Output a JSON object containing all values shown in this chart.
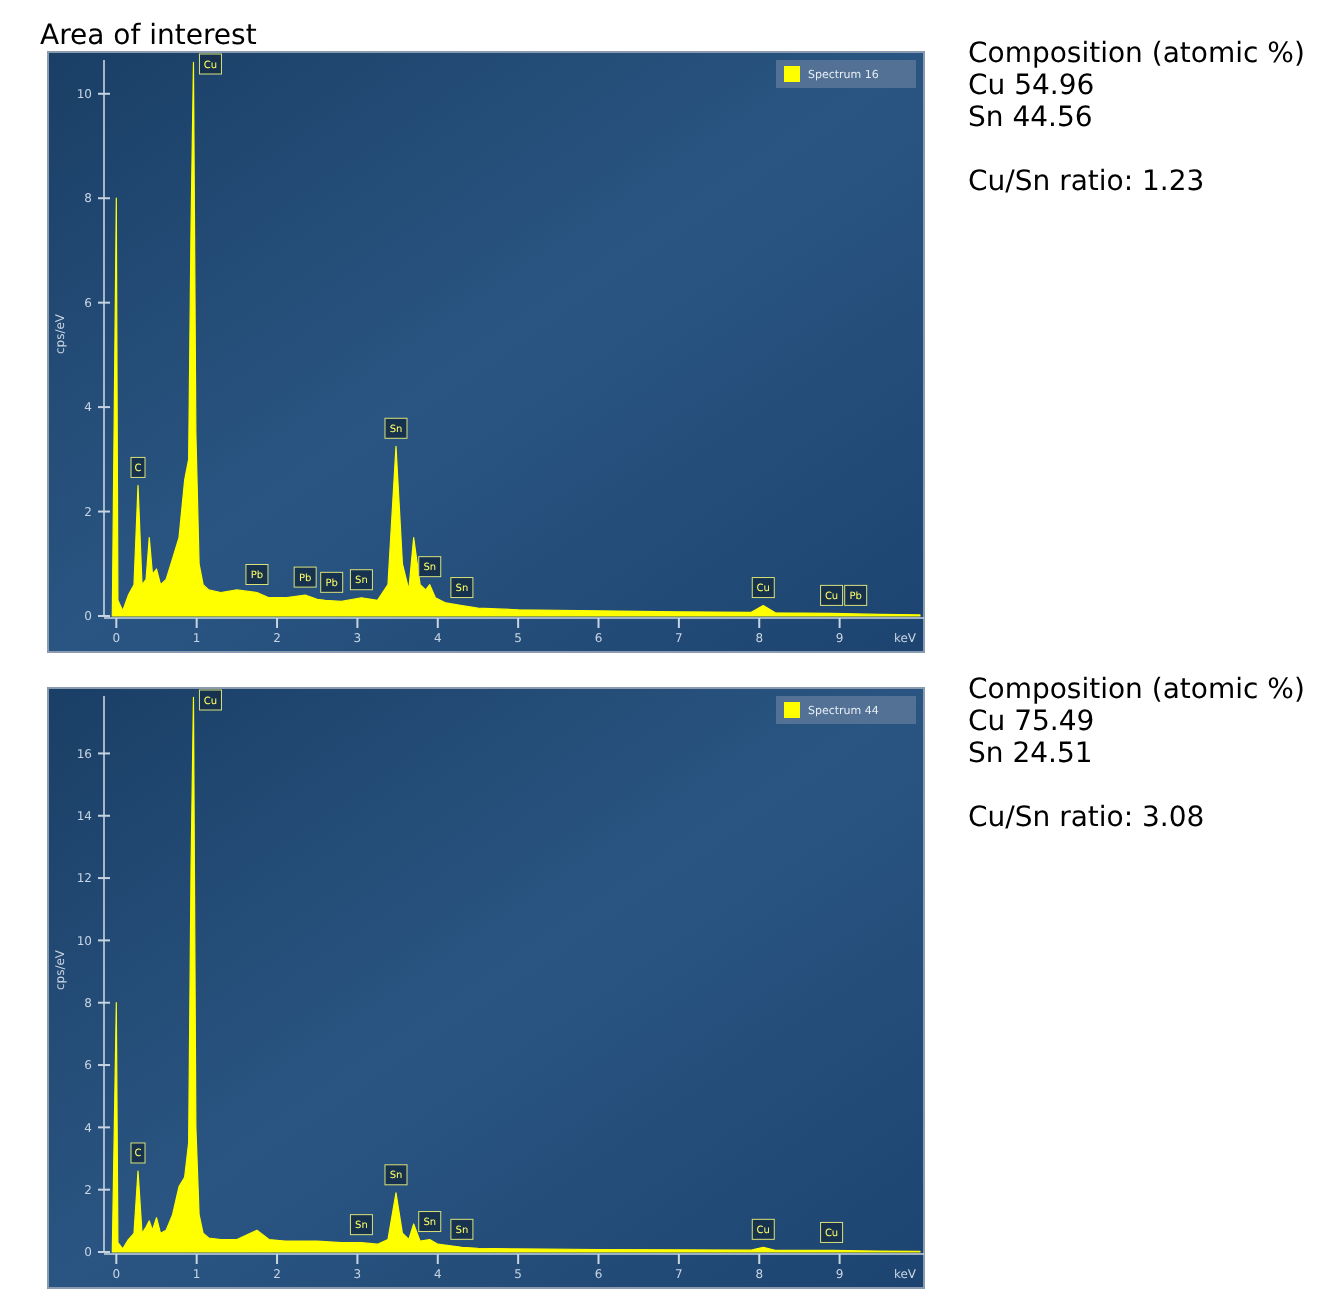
{
  "chart_data": [
    {
      "type": "area",
      "title": "Area of interest",
      "xlabel": "keV",
      "ylabel": "cps/eV",
      "xlim": [
        -0.85,
        10.05
      ],
      "ylim": [
        0,
        10.8
      ],
      "xticks": [
        0,
        1,
        2,
        3,
        4,
        5,
        6,
        7,
        8,
        9
      ],
      "yticks": [
        0,
        2,
        4,
        6,
        8,
        10
      ],
      "legend": "top right",
      "series": [
        {
          "name": "Spectrum 16",
          "color": "#ffff00",
          "x": [
            -0.05,
            0.0,
            0.02,
            0.08,
            0.15,
            0.22,
            0.27,
            0.32,
            0.37,
            0.41,
            0.45,
            0.5,
            0.55,
            0.62,
            0.7,
            0.78,
            0.85,
            0.9,
            0.93,
            0.96,
            0.99,
            1.03,
            1.08,
            1.15,
            1.3,
            1.5,
            1.75,
            1.9,
            2.1,
            2.35,
            2.5,
            2.6,
            2.8,
            3.05,
            3.25,
            3.38,
            3.48,
            3.56,
            3.64,
            3.7,
            3.78,
            3.85,
            3.9,
            3.97,
            4.1,
            4.3,
            4.5,
            5.0,
            6.0,
            7.0,
            7.9,
            8.05,
            8.2,
            8.9,
            9.5,
            10.0
          ],
          "values": [
            0,
            8.0,
            0.3,
            0.1,
            0.4,
            0.6,
            2.5,
            0.6,
            0.7,
            1.5,
            0.8,
            0.9,
            0.6,
            0.7,
            1.1,
            1.5,
            2.6,
            3.0,
            7.5,
            10.6,
            3.5,
            1.0,
            0.6,
            0.5,
            0.45,
            0.5,
            0.45,
            0.35,
            0.35,
            0.4,
            0.32,
            0.3,
            0.28,
            0.35,
            0.3,
            0.6,
            3.25,
            1.0,
            0.5,
            1.5,
            0.6,
            0.5,
            0.6,
            0.35,
            0.25,
            0.2,
            0.15,
            0.12,
            0.1,
            0.08,
            0.07,
            0.2,
            0.06,
            0.05,
            0.03,
            0.02
          ]
        }
      ],
      "annotations": [
        {
          "text": "C",
          "x": 0.27,
          "y": 2.5
        },
        {
          "text": "Cu",
          "x": 0.96,
          "y": 10.6
        },
        {
          "text": "Pb",
          "x": 1.75,
          "y": 0.45
        },
        {
          "text": "Pb",
          "x": 2.35,
          "y": 0.4
        },
        {
          "text": "Pb",
          "x": 2.68,
          "y": 0.3
        },
        {
          "text": "Sn",
          "x": 3.05,
          "y": 0.35
        },
        {
          "text": "Sn",
          "x": 3.48,
          "y": 3.25
        },
        {
          "text": "Sn",
          "x": 3.9,
          "y": 0.6
        },
        {
          "text": "Sn",
          "x": 4.3,
          "y": 0.2
        },
        {
          "text": "Cu",
          "x": 8.05,
          "y": 0.2
        },
        {
          "text": "Cu",
          "x": 8.9,
          "y": 0.05
        },
        {
          "text": "Pb",
          "x": 9.2,
          "y": 0.05
        },
        "Composition (atomic %)",
        "Cu 54.96",
        "Sn 44.56",
        "Cu/Sn ratio: 1.23"
      ]
    },
    {
      "type": "area",
      "xlabel": "keV",
      "ylabel": "cps/eV",
      "xlim": [
        -0.85,
        10.05
      ],
      "ylim": [
        0,
        18.1
      ],
      "xticks": [
        0,
        1,
        2,
        3,
        4,
        5,
        6,
        7,
        8,
        9
      ],
      "yticks": [
        0,
        2,
        4,
        6,
        8,
        10,
        12,
        14,
        16
      ],
      "legend": "top right",
      "series": [
        {
          "name": "Spectrum 44",
          "color": "#ffff00",
          "x": [
            -0.05,
            0.0,
            0.02,
            0.08,
            0.15,
            0.22,
            0.27,
            0.32,
            0.37,
            0.41,
            0.45,
            0.5,
            0.55,
            0.62,
            0.7,
            0.78,
            0.85,
            0.9,
            0.93,
            0.96,
            0.99,
            1.03,
            1.08,
            1.15,
            1.3,
            1.5,
            1.75,
            1.9,
            2.1,
            2.5,
            2.8,
            3.05,
            3.25,
            3.38,
            3.48,
            3.56,
            3.64,
            3.7,
            3.78,
            3.9,
            4.0,
            4.3,
            4.5,
            5.0,
            6.0,
            7.0,
            7.9,
            8.05,
            8.2,
            8.9,
            9.5,
            10.0
          ],
          "values": [
            0,
            8.0,
            0.3,
            0.1,
            0.4,
            0.6,
            2.6,
            0.6,
            0.8,
            1.0,
            0.7,
            1.1,
            0.6,
            0.7,
            1.2,
            2.1,
            2.4,
            3.5,
            12.4,
            17.8,
            4.0,
            1.2,
            0.6,
            0.45,
            0.4,
            0.4,
            0.7,
            0.4,
            0.35,
            0.35,
            0.3,
            0.3,
            0.25,
            0.4,
            1.9,
            0.6,
            0.4,
            0.9,
            0.35,
            0.4,
            0.25,
            0.15,
            0.12,
            0.1,
            0.08,
            0.07,
            0.06,
            0.15,
            0.05,
            0.05,
            0.03,
            0.02
          ]
        }
      ],
      "annotations": [
        {
          "text": "C",
          "x": 0.27,
          "y": 2.6
        },
        {
          "text": "Cu",
          "x": 0.96,
          "y": 17.8
        },
        {
          "text": "Sn",
          "x": 3.05,
          "y": 0.3
        },
        {
          "text": "Sn",
          "x": 3.48,
          "y": 1.9
        },
        {
          "text": "Sn",
          "x": 3.9,
          "y": 0.4
        },
        {
          "text": "Sn",
          "x": 4.3,
          "y": 0.15
        },
        {
          "text": "Cu",
          "x": 8.05,
          "y": 0.15
        },
        {
          "text": "Cu",
          "x": 8.9,
          "y": 0.05
        },
        "Composition (atomic %)",
        "Cu 75.49",
        "Sn 24.51",
        "Cu/Sn ratio: 3.08"
      ]
    }
  ]
}
